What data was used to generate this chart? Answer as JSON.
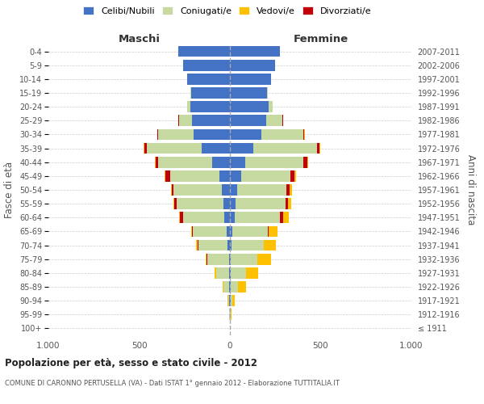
{
  "age_groups": [
    "100+",
    "95-99",
    "90-94",
    "85-89",
    "80-84",
    "75-79",
    "70-74",
    "65-69",
    "60-64",
    "55-59",
    "50-54",
    "45-49",
    "40-44",
    "35-39",
    "30-34",
    "25-29",
    "20-24",
    "15-19",
    "10-14",
    "5-9",
    "0-4"
  ],
  "birth_years": [
    "≤ 1911",
    "1912-1916",
    "1917-1921",
    "1922-1926",
    "1927-1931",
    "1932-1936",
    "1937-1941",
    "1942-1946",
    "1947-1951",
    "1952-1956",
    "1957-1961",
    "1962-1966",
    "1967-1971",
    "1972-1976",
    "1977-1981",
    "1982-1986",
    "1987-1991",
    "1992-1996",
    "1997-2001",
    "2002-2006",
    "2007-2011"
  ],
  "male": {
    "celibe": [
      0,
      2,
      3,
      4,
      5,
      6,
      15,
      20,
      30,
      35,
      45,
      60,
      100,
      155,
      200,
      210,
      220,
      215,
      235,
      260,
      285
    ],
    "coniugato": [
      0,
      2,
      8,
      30,
      70,
      120,
      160,
      185,
      230,
      260,
      265,
      270,
      295,
      305,
      195,
      70,
      15,
      3,
      0,
      0,
      0
    ],
    "vedovo": [
      0,
      1,
      2,
      5,
      10,
      8,
      8,
      6,
      5,
      3,
      3,
      3,
      2,
      2,
      1,
      1,
      0,
      0,
      0,
      0,
      0
    ],
    "divorziato": [
      0,
      0,
      0,
      0,
      1,
      1,
      2,
      3,
      15,
      12,
      12,
      25,
      15,
      12,
      5,
      3,
      1,
      0,
      0,
      0,
      0
    ]
  },
  "female": {
    "nubile": [
      0,
      2,
      3,
      5,
      5,
      5,
      10,
      15,
      25,
      30,
      40,
      60,
      85,
      130,
      175,
      200,
      215,
      205,
      225,
      250,
      275
    ],
    "coniugata": [
      0,
      2,
      10,
      40,
      85,
      145,
      175,
      195,
      250,
      275,
      270,
      275,
      320,
      350,
      230,
      90,
      20,
      4,
      1,
      0,
      0
    ],
    "vedova": [
      1,
      4,
      15,
      45,
      65,
      75,
      65,
      50,
      30,
      18,
      12,
      8,
      5,
      4,
      3,
      2,
      1,
      0,
      0,
      0,
      0
    ],
    "divorziata": [
      0,
      0,
      0,
      0,
      1,
      1,
      2,
      3,
      18,
      14,
      18,
      20,
      20,
      15,
      6,
      3,
      1,
      0,
      0,
      0,
      0
    ]
  },
  "colors": {
    "celibe": "#4472c4",
    "coniugato": "#c5d9a0",
    "vedovo": "#ffc000",
    "divorziato": "#c0000b"
  },
  "xlim": 1000,
  "title_main": "Popolazione per età, sesso e stato civile - 2012",
  "title_sub": "COMUNE DI CARONNO PERTUSELLA (VA) - Dati ISTAT 1° gennaio 2012 - Elaborazione TUTTITALIA.IT",
  "ylabel_left": "Fasce di età",
  "ylabel_right": "Anni di nascita",
  "legend_labels": [
    "Celibi/Nubili",
    "Coniugati/e",
    "Vedovi/e",
    "Divorziati/e"
  ],
  "background_color": "#ffffff",
  "bar_height": 0.8
}
